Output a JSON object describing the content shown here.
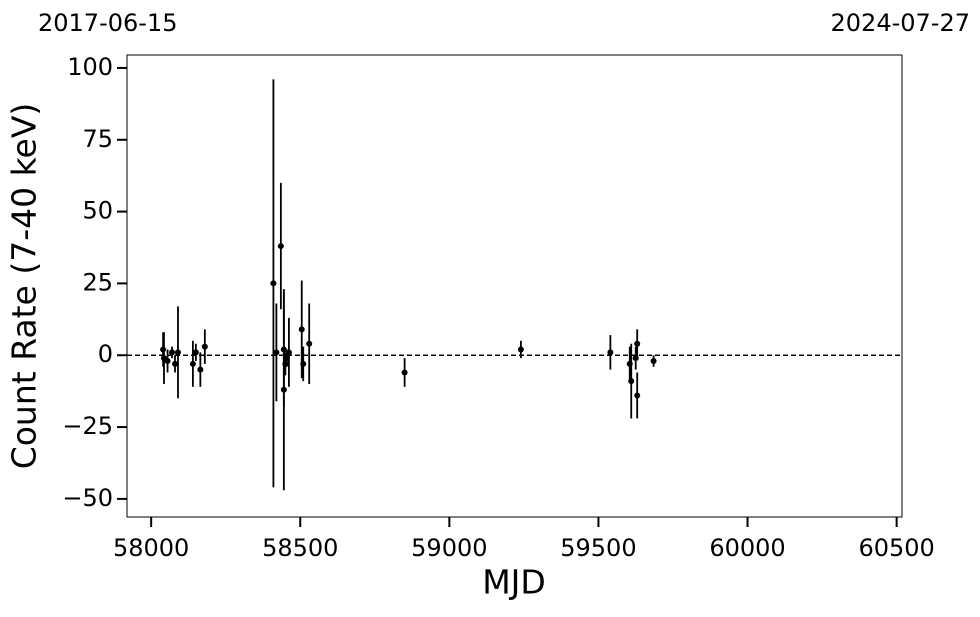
{
  "chart_data": {
    "type": "errorbar",
    "top_left_label": "2017-06-15",
    "top_right_label": "2024-07-27",
    "xlabel": "MJD",
    "ylabel": "Count Rate (7-40 keV)",
    "xlim": [
      57919,
      60518
    ],
    "ylim": [
      -56.3,
      104.5
    ],
    "xticks": [
      58000,
      58500,
      59000,
      59500,
      60000,
      60500
    ],
    "yticks": [
      {
        "value": -50,
        "label": "−50"
      },
      {
        "value": -25,
        "label": "−25"
      },
      0,
      25,
      50,
      75,
      100
    ],
    "reference_line": {
      "y": 0,
      "style": "dashed"
    },
    "color": "#000000",
    "x": [
      58040,
      58043,
      58055,
      58070,
      58080,
      58090,
      58140,
      58150,
      58165,
      58180,
      58410,
      58420,
      58435,
      58445,
      58445,
      58450,
      58455,
      58462,
      58505,
      58510,
      58530,
      58850,
      59240,
      59540,
      59605,
      59610,
      59625,
      59630,
      59630,
      59685
    ],
    "values": [
      2,
      -1,
      -2,
      1,
      -3,
      1,
      -3,
      1,
      -5,
      3,
      25,
      1,
      38,
      2,
      -12,
      -3,
      -1,
      1,
      9,
      -3,
      4,
      -6,
      2,
      1,
      -3,
      -9,
      -1,
      4,
      -14,
      -2
    ],
    "errors": [
      6,
      9,
      4,
      2,
      3,
      16,
      8,
      3,
      6,
      6,
      71,
      17,
      22,
      20,
      35,
      4,
      3,
      12,
      17,
      6,
      14,
      5,
      3,
      6,
      6,
      13,
      4,
      5,
      8,
      2
    ]
  }
}
